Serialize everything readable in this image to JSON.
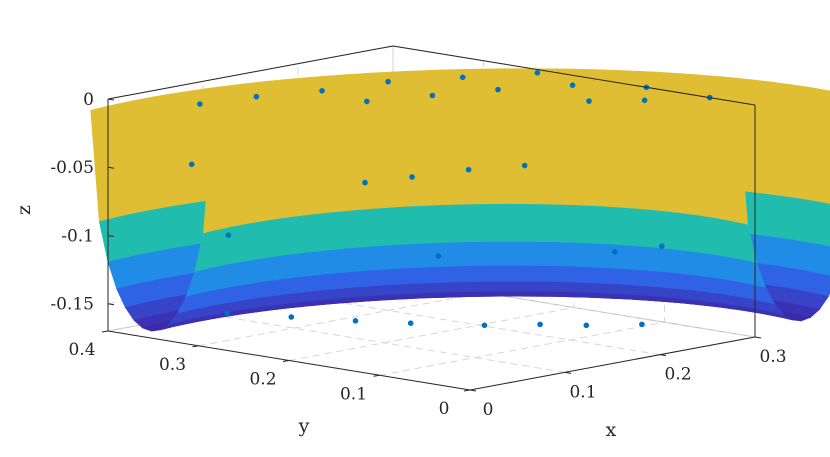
{
  "chart_data": {
    "type": "surface3d-with-scatter",
    "title": "",
    "xlabel": "x",
    "ylabel": "y",
    "zlabel": "z",
    "xlim": [
      0,
      0.3
    ],
    "ylim": [
      0,
      0.4
    ],
    "zlim": [
      -0.17,
      0
    ],
    "xticks": [
      "0",
      "0.1",
      "0.2",
      "0.3"
    ],
    "yticks": [
      "0",
      "0.1",
      "0.2",
      "0.3",
      "0.4"
    ],
    "zticks": [
      "0",
      "-0.05",
      "-0.1",
      "-0.15"
    ],
    "xtick_values": [
      0,
      0.1,
      0.2,
      0.3
    ],
    "ytick_values": [
      0,
      0.1,
      0.2,
      0.3,
      0.4
    ],
    "ztick_values": [
      0,
      -0.05,
      -0.1,
      -0.15
    ],
    "grid": true,
    "colormap": [
      "#3e26a8",
      "#2d6ff2",
      "#12b1d5",
      "#3ad26a",
      "#c8c22b",
      "#fdb93c",
      "#f9fb0e"
    ],
    "point_color": "#0072bd",
    "surface": {
      "description_free": true,
      "radius_range": [
        0.245,
        0.36
      ],
      "theta_range_deg": [
        -10,
        100
      ],
      "z_at_edge": 0,
      "z_at_bottom": -0.157
    },
    "points": [
      {
        "x": 0.03,
        "y": 0.33,
        "z": 0.0
      },
      {
        "x": 0.08,
        "y": 0.32,
        "z": 0.0
      },
      {
        "x": 0.13,
        "y": 0.3,
        "z": 0.0
      },
      {
        "x": 0.19,
        "y": 0.29,
        "z": 0.0
      },
      {
        "x": 0.24,
        "y": 0.26,
        "z": 0.0
      },
      {
        "x": 0.29,
        "y": 0.23,
        "z": 0.0
      },
      {
        "x": 0.12,
        "y": 0.24,
        "z": 0.0
      },
      {
        "x": 0.17,
        "y": 0.22,
        "z": 0.0
      },
      {
        "x": 0.22,
        "y": 0.2,
        "z": 0.0
      },
      {
        "x": 0.27,
        "y": 0.17,
        "z": 0.0
      },
      {
        "x": 0.3,
        "y": 0.12,
        "z": 0.0
      },
      {
        "x": 0.3,
        "y": 0.05,
        "z": 0.0
      },
      {
        "x": 0.26,
        "y": 0.08,
        "z": 0.0
      },
      {
        "x": 0.23,
        "y": 0.11,
        "z": 0.0
      },
      {
        "x": 0.21,
        "y": 0.16,
        "z": -0.05
      },
      {
        "x": 0.17,
        "y": 0.18,
        "z": -0.05
      },
      {
        "x": 0.12,
        "y": 0.19,
        "z": -0.05
      },
      {
        "x": 0.08,
        "y": 0.2,
        "z": -0.05
      },
      {
        "x": 0.05,
        "y": 0.36,
        "z": -0.05
      },
      {
        "x": 0.1,
        "y": 0.14,
        "z": -0.1
      },
      {
        "x": 0.06,
        "y": 0.33,
        "z": -0.1
      },
      {
        "x": 0.2,
        "y": 0.05,
        "z": -0.1
      },
      {
        "x": 0.24,
        "y": 0.04,
        "z": -0.1
      },
      {
        "x": 0.03,
        "y": 0.3,
        "z": -0.15
      },
      {
        "x": 0.05,
        "y": 0.25,
        "z": -0.15
      },
      {
        "x": 0.07,
        "y": 0.2,
        "z": -0.15
      },
      {
        "x": 0.09,
        "y": 0.16,
        "z": -0.15
      },
      {
        "x": 0.12,
        "y": 0.11,
        "z": -0.15
      },
      {
        "x": 0.15,
        "y": 0.08,
        "z": -0.15
      },
      {
        "x": 0.17,
        "y": 0.05,
        "z": -0.15
      },
      {
        "x": 0.2,
        "y": 0.02,
        "z": -0.15
      }
    ]
  }
}
